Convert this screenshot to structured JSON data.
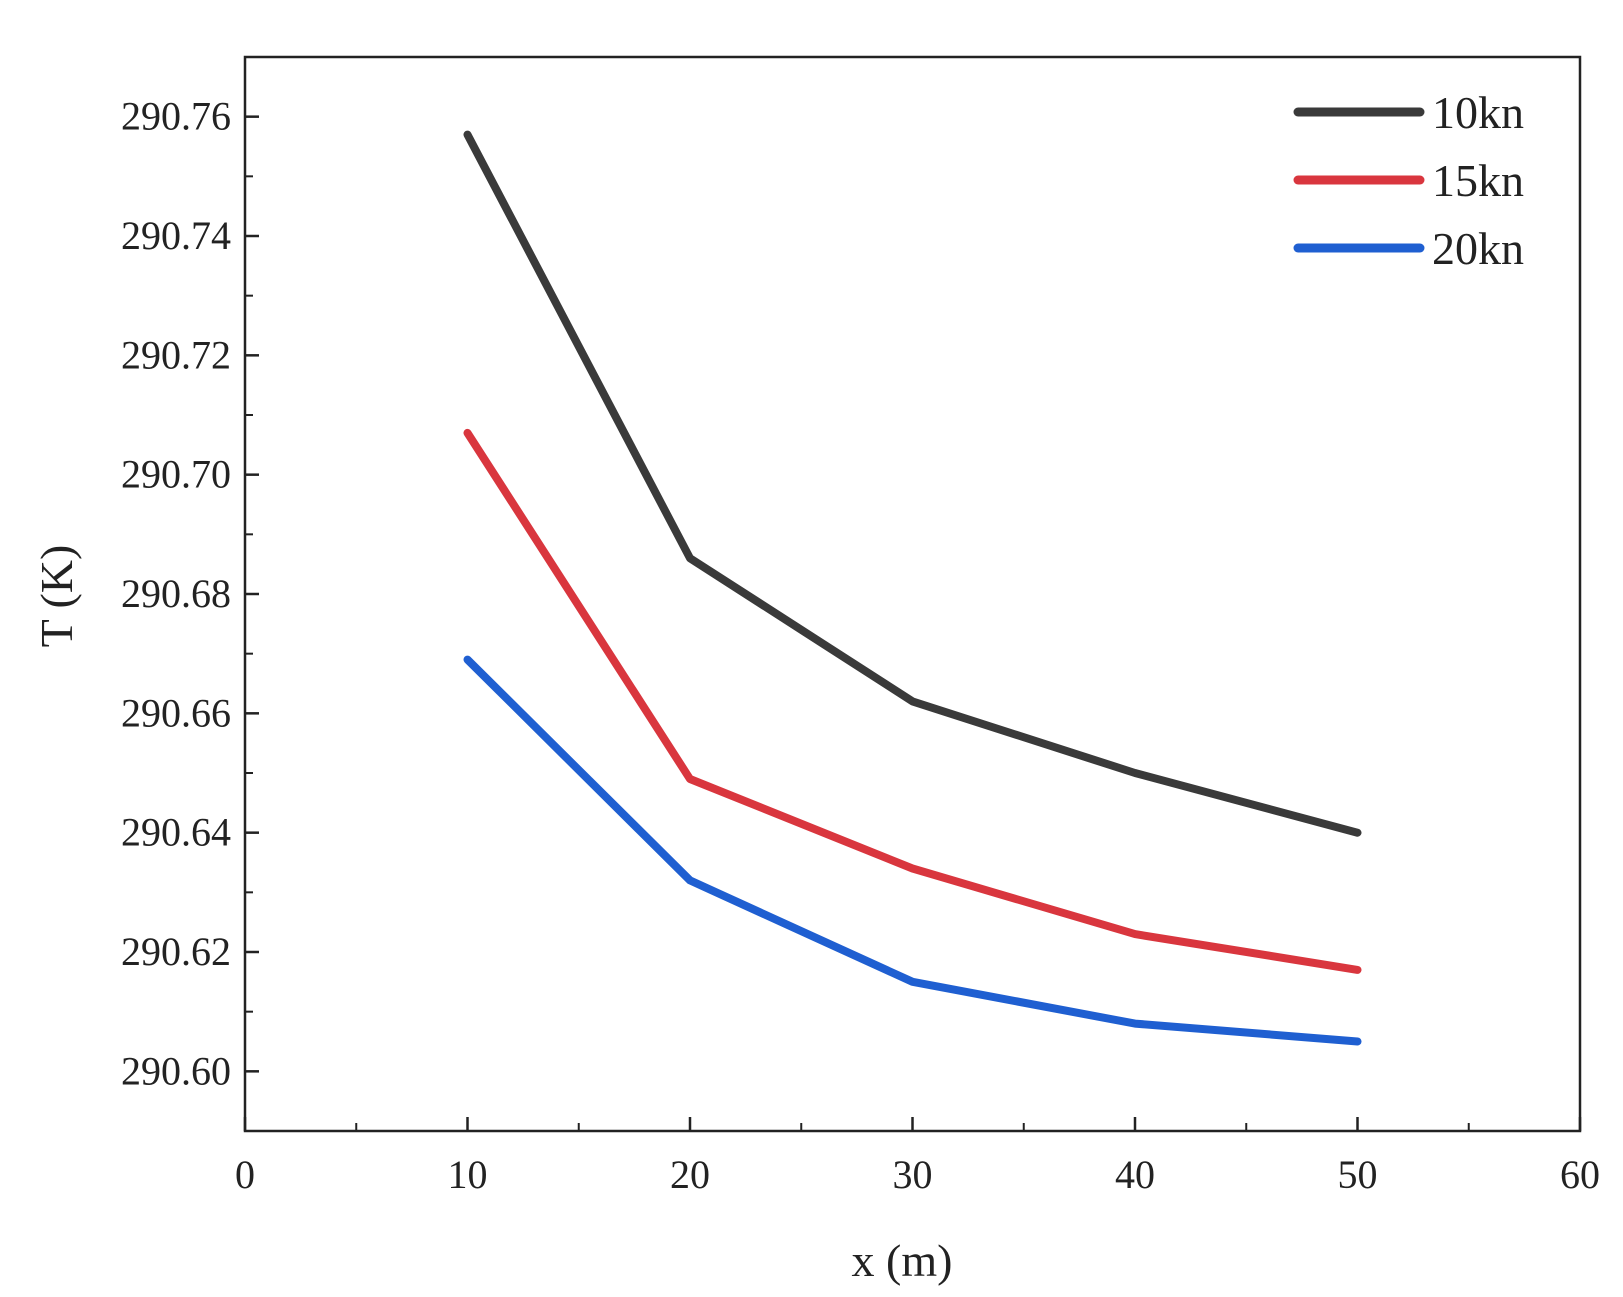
{
  "chart_data": {
    "type": "line",
    "title": "",
    "xlabel": "x (m)",
    "ylabel": "T (K)",
    "xlim": [
      0,
      60
    ],
    "ylim": [
      290.59,
      290.77
    ],
    "x_ticks": [
      0,
      10,
      20,
      30,
      40,
      50,
      60
    ],
    "x_tick_labels": [
      "0",
      "10",
      "20",
      "30",
      "40",
      "50",
      "60"
    ],
    "y_ticks": [
      290.6,
      290.62,
      290.64,
      290.66,
      290.68,
      290.7,
      290.72,
      290.74,
      290.76
    ],
    "y_tick_labels": [
      "290.60",
      "290.62",
      "290.64",
      "290.66",
      "290.68",
      "290.70",
      "290.72",
      "290.74",
      "290.76"
    ],
    "x_minor_step": 5,
    "y_minor_step": 0.01,
    "grid": false,
    "legend_position": "top-right",
    "x": [
      10,
      20,
      30,
      40,
      50
    ],
    "series": [
      {
        "name": "10kn",
        "color": "#3a3a3a",
        "values": [
          290.757,
          290.686,
          290.662,
          290.65,
          290.64
        ]
      },
      {
        "name": "15kn",
        "color": "#d9363e",
        "values": [
          290.707,
          290.649,
          290.634,
          290.623,
          290.617
        ]
      },
      {
        "name": "20kn",
        "color": "#1f5fd1",
        "values": [
          290.669,
          290.632,
          290.615,
          290.608,
          290.605
        ]
      }
    ]
  }
}
